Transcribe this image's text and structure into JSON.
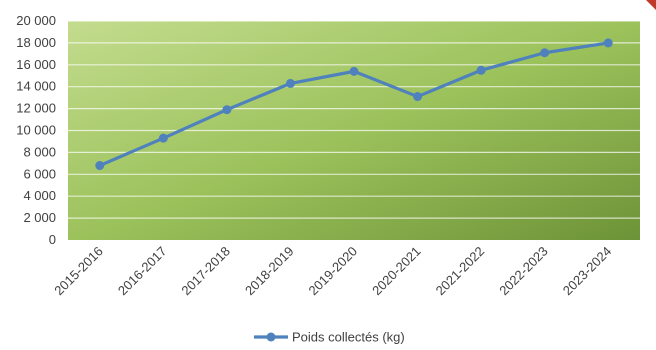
{
  "chart_data": {
    "type": "line",
    "categories": [
      "2015-2016",
      "2016-2017",
      "2017-2018",
      "2018-2019",
      "2019-2020",
      "2020-2021",
      "2021-2022",
      "2022-2023",
      "2023-2024"
    ],
    "series": [
      {
        "name": "Poids collectés (kg)",
        "values": [
          6800,
          9300,
          11900,
          14300,
          15400,
          13100,
          15500,
          17100,
          18000
        ],
        "color": "#4f81bd"
      }
    ],
    "title": "",
    "xlabel": "",
    "ylabel": "",
    "ylim": [
      0,
      20000
    ],
    "yticks": [
      0,
      2000,
      4000,
      6000,
      8000,
      10000,
      12000,
      14000,
      16000,
      18000,
      20000
    ],
    "ytick_labels": [
      "0",
      "2 000",
      "4 000",
      "6 000",
      "8 000",
      "10 000",
      "12 000",
      "14 000",
      "16 000",
      "18 000",
      "20 000"
    ],
    "grid": true,
    "legend_position": "bottom",
    "plot_background": "#9ac05a"
  }
}
